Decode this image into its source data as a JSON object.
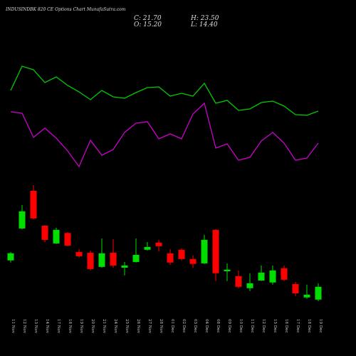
{
  "chart_data": {
    "type": "candlestick",
    "title": "INDUSINDBK 820 CE Options Chart MunafaSutra.com",
    "info": [
      "C: 21.70",
      "O: 15.20",
      "H: 23.50",
      "L: 14.40"
    ],
    "categories": [
      "11 Nov",
      "12 Nov",
      "13 Nov",
      "14 Nov",
      "17 Nov",
      "18 Nov",
      "19 Nov",
      "20 Nov",
      "21 Nov",
      "24 Nov",
      "25 Nov",
      "26 Nov",
      "27 Nov",
      "28 Nov",
      "01 Dec",
      "02 Dec",
      "03 Dec",
      "04 Dec",
      "08 Dec",
      "09 Dec",
      "10 Dec",
      "11 Dec",
      "12 Dec",
      "15 Dec",
      "16 Dec",
      "17 Dec",
      "18 Dec",
      "19 Dec"
    ],
    "open": [
      35.1,
      51.3,
      70.4,
      52.7,
      43.7,
      49.0,
      39.4,
      39.0,
      31.8,
      39.0,
      31.4,
      34.3,
      40.5,
      44.1,
      38.7,
      40.5,
      35.8,
      33.6,
      50.6,
      29.6,
      27.1,
      21.0,
      24.9,
      23.9,
      31.1,
      23.1,
      16.3,
      15.2
    ],
    "high": [
      39.4,
      63.2,
      73.3,
      53.0,
      51.7,
      49.5,
      40.8,
      40.1,
      46.2,
      45.9,
      34.3,
      46.2,
      44.4,
      45.5,
      40.8,
      41.2,
      37.6,
      48.1,
      51.0,
      33.6,
      30.0,
      28.6,
      32.5,
      32.5,
      32.5,
      24.2,
      22.8,
      23.5
    ],
    "low": [
      34.0,
      50.9,
      56.0,
      44.4,
      43.4,
      42.3,
      36.5,
      30.0,
      31.4,
      31.4,
      27.5,
      34.0,
      40.1,
      39.7,
      32.9,
      35.1,
      31.4,
      33.3,
      24.6,
      24.6,
      21.0,
      19.5,
      24.6,
      22.8,
      24.6,
      17.0,
      15.6,
      14.4
    ],
    "close": [
      38.7,
      60.0,
      56.4,
      45.5,
      50.6,
      42.6,
      37.2,
      30.7,
      38.7,
      32.5,
      32.5,
      37.9,
      41.9,
      42.3,
      34.0,
      35.8,
      33.3,
      45.5,
      28.6,
      30.4,
      21.7,
      23.5,
      28.9,
      30.0,
      25.3,
      18.4,
      17.7,
      21.7
    ],
    "up_color": "#00e000",
    "down_color": "#ff0000",
    "lines": [
      {
        "color": "#00cc00",
        "values": [
          173,
          207,
          202,
          184,
          192,
          180,
          171,
          160,
          173,
          164,
          162,
          170,
          177,
          178,
          165,
          169,
          165,
          183,
          155,
          159,
          145,
          147,
          156,
          158,
          151,
          139,
          138,
          144
        ]
      },
      {
        "color": "#cc00cc",
        "values": [
          143,
          141,
          107,
          120,
          106,
          88,
          66,
          103,
          82,
          90,
          114,
          127,
          129,
          105,
          112,
          105,
          140,
          155,
          92,
          98,
          75,
          79,
          102,
          114,
          99,
          75,
          78,
          99
        ]
      }
    ]
  }
}
